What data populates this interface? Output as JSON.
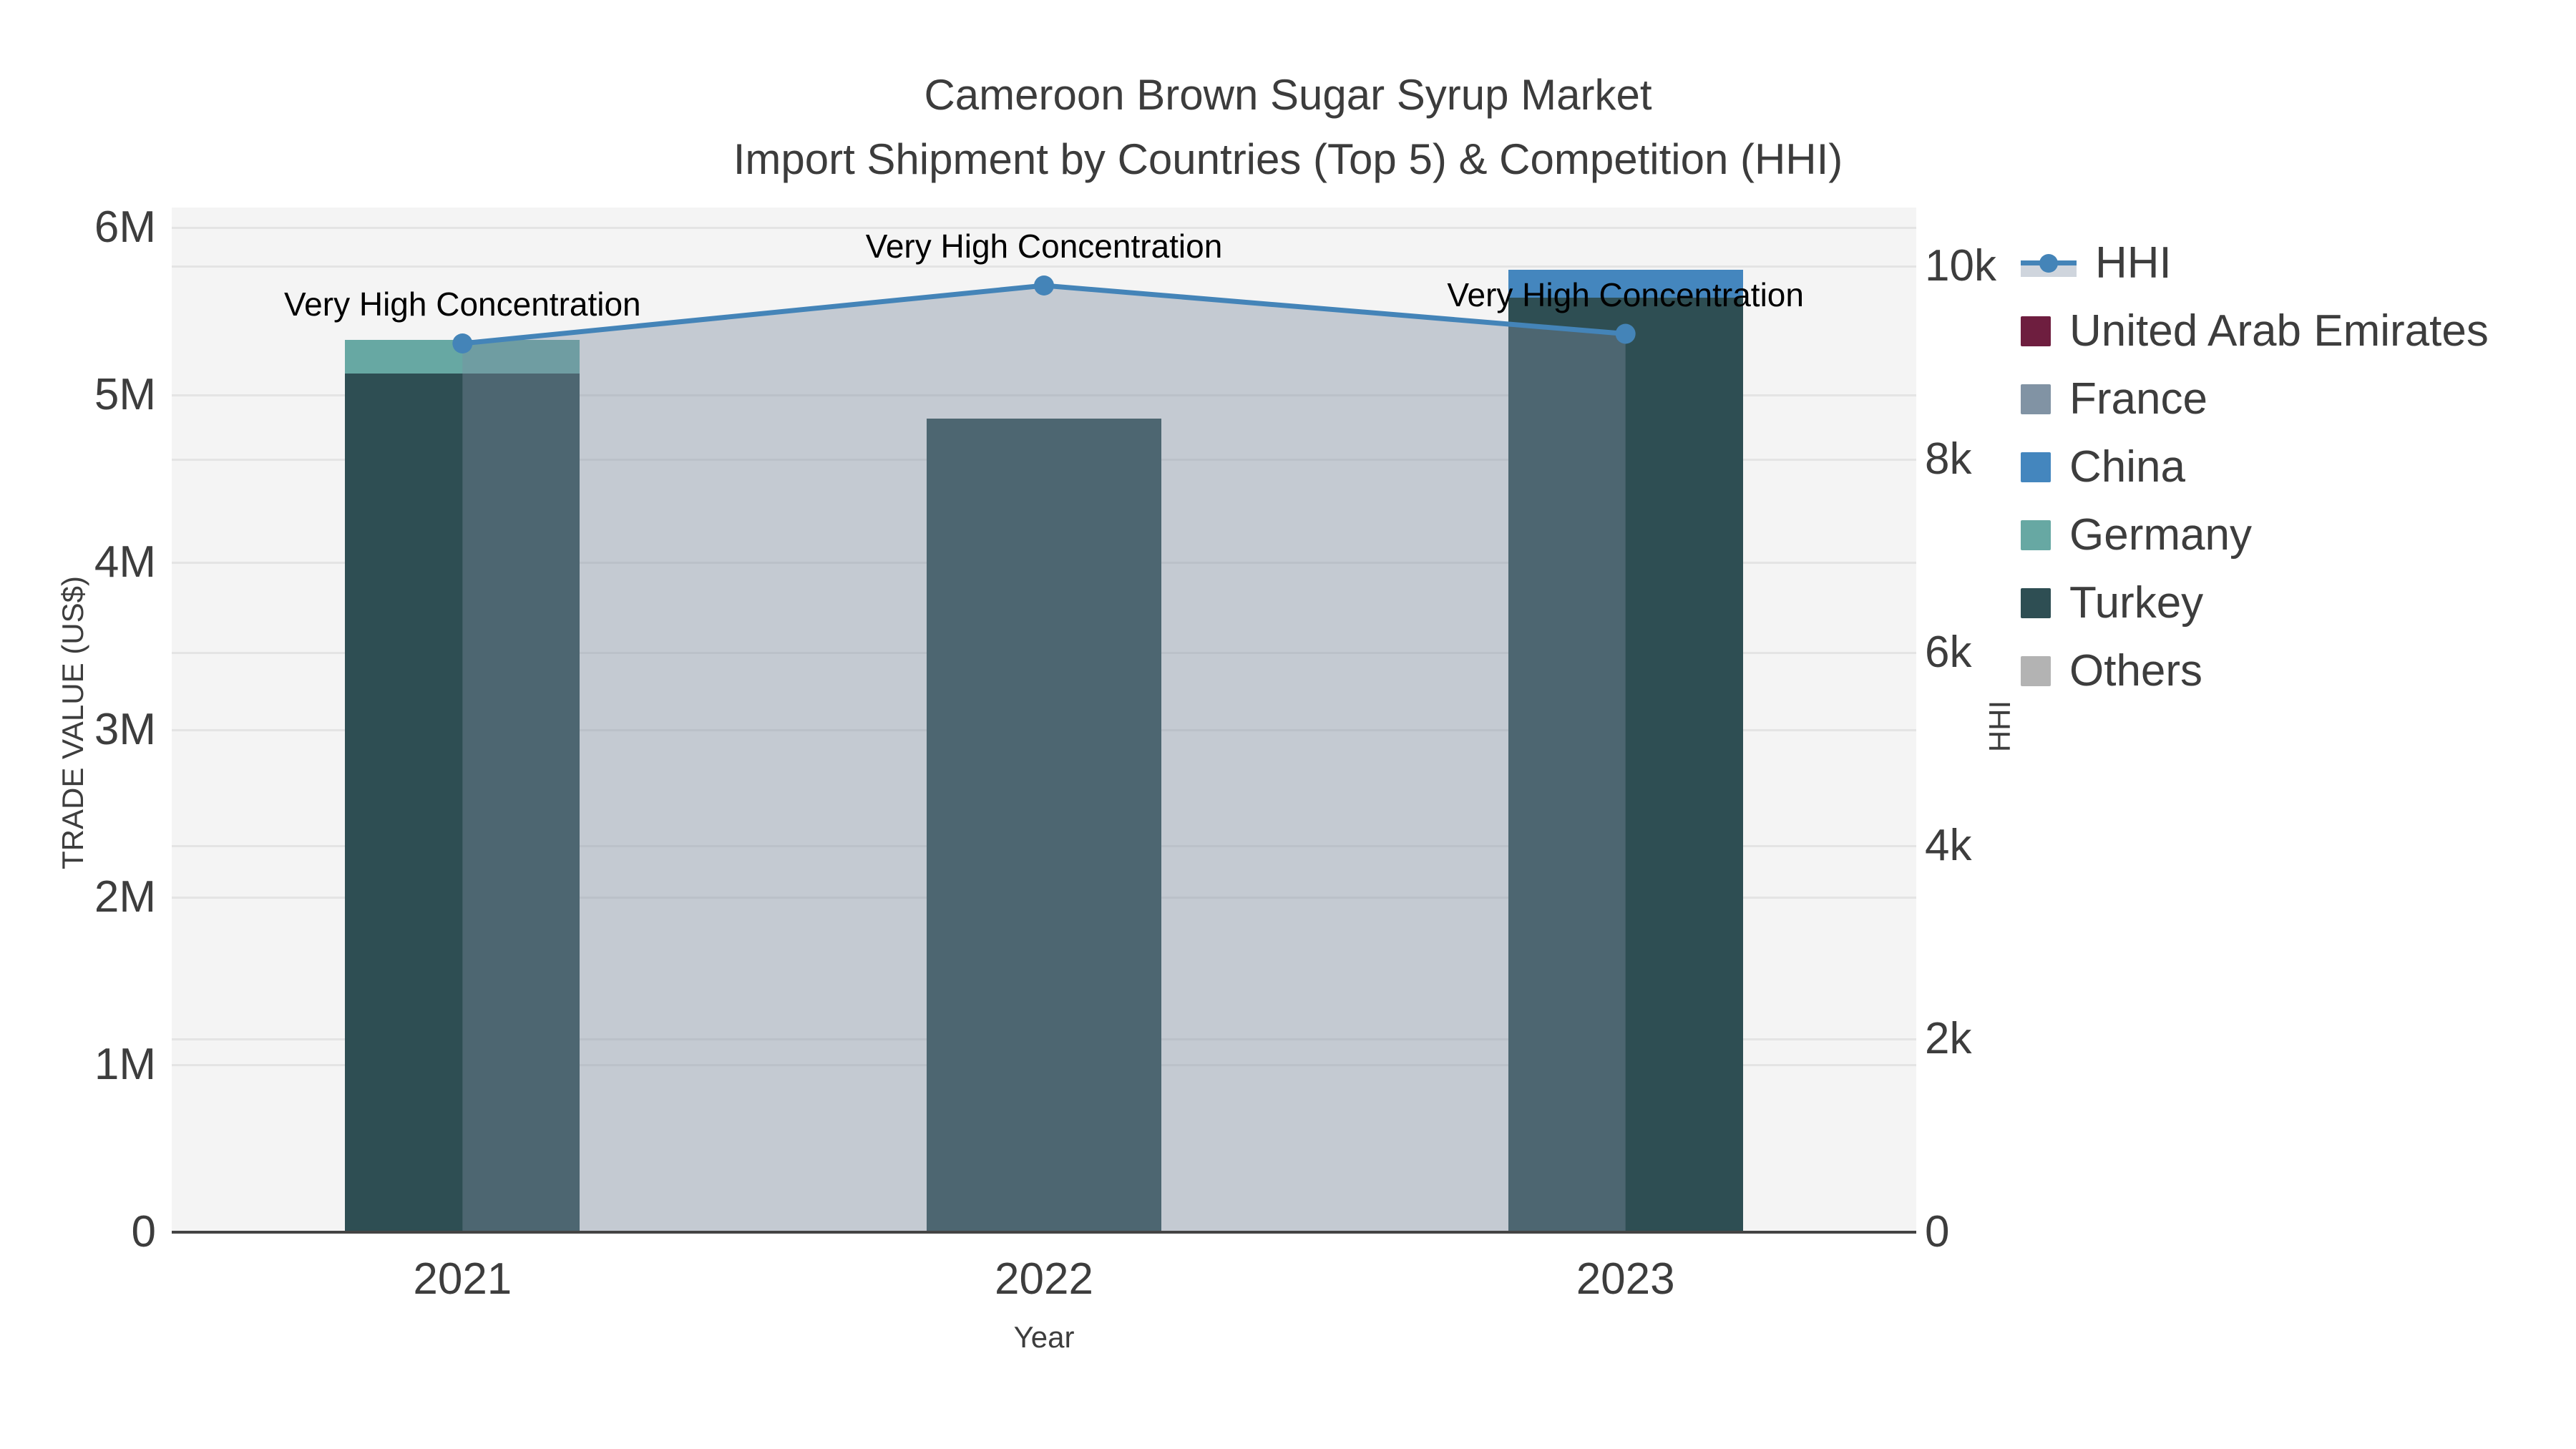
{
  "chart_data": {
    "type": "bar",
    "stacked": true,
    "title_line1": "Cameroon Brown Sugar Syrup Market",
    "title_line2": "Import Shipment by Countries (Top 5) & Competition (HHI)",
    "xlabel": "Year",
    "ylabel": "TRADE VALUE (US$)",
    "y2label": "HHI",
    "categories": [
      "2021",
      "2022",
      "2023"
    ],
    "series": [
      {
        "name": "United Arab Emirates",
        "color": "#6E1E3F",
        "values": [
          0,
          0,
          0
        ]
      },
      {
        "name": "France",
        "color": "#8193A4",
        "values": [
          0,
          0,
          0
        ]
      },
      {
        "name": "China",
        "color": "#4486BE",
        "values": [
          0,
          0,
          170000
        ]
      },
      {
        "name": "Germany",
        "color": "#67A8A3",
        "values": [
          200000,
          0,
          0
        ]
      },
      {
        "name": "Turkey",
        "color": "#2E4E53",
        "values": [
          5130000,
          4860000,
          5580000
        ]
      },
      {
        "name": "Others",
        "color": "#B3B3B3",
        "values": [
          0,
          0,
          0
        ]
      }
    ],
    "line_series": {
      "name": "HHI",
      "color": "#4484B8",
      "area_fill_color": "rgba(125,140,160,0.40)",
      "axis": "right",
      "values": [
        9200,
        9800,
        9300
      ]
    },
    "annotations": [
      {
        "text": "Very High Concentration",
        "category": "2021"
      },
      {
        "text": "Very High Concentration",
        "category": "2022"
      },
      {
        "text": "Very High Concentration",
        "category": "2023"
      }
    ],
    "yticks": {
      "labels": [
        "0",
        "1M",
        "2M",
        "3M",
        "4M",
        "5M",
        "6M"
      ],
      "values": [
        0,
        1000000,
        2000000,
        3000000,
        4000000,
        5000000,
        6000000
      ]
    },
    "y2ticks": {
      "labels": [
        "0",
        "2k",
        "4k",
        "6k",
        "8k",
        "10k"
      ],
      "values": [
        0,
        2000,
        4000,
        6000,
        8000,
        10000
      ]
    },
    "ylim": [
      0,
      6120000
    ],
    "y2lim": [
      0,
      10600
    ],
    "grid": true,
    "legend_position": "right"
  },
  "legend": {
    "items": [
      {
        "label": "HHI",
        "marker": "line"
      },
      {
        "label": "United Arab Emirates",
        "marker": "square"
      },
      {
        "label": "France",
        "marker": "square"
      },
      {
        "label": "China",
        "marker": "square"
      },
      {
        "label": "Germany",
        "marker": "square"
      },
      {
        "label": "Turkey",
        "marker": "square"
      },
      {
        "label": "Others",
        "marker": "square"
      }
    ]
  },
  "colors": {
    "plot_background": "#f4f4f4",
    "gridline": "#e4e4e4",
    "axis_line": "#444444",
    "text": "#3d3d3d",
    "annotation_text": "#000000"
  }
}
